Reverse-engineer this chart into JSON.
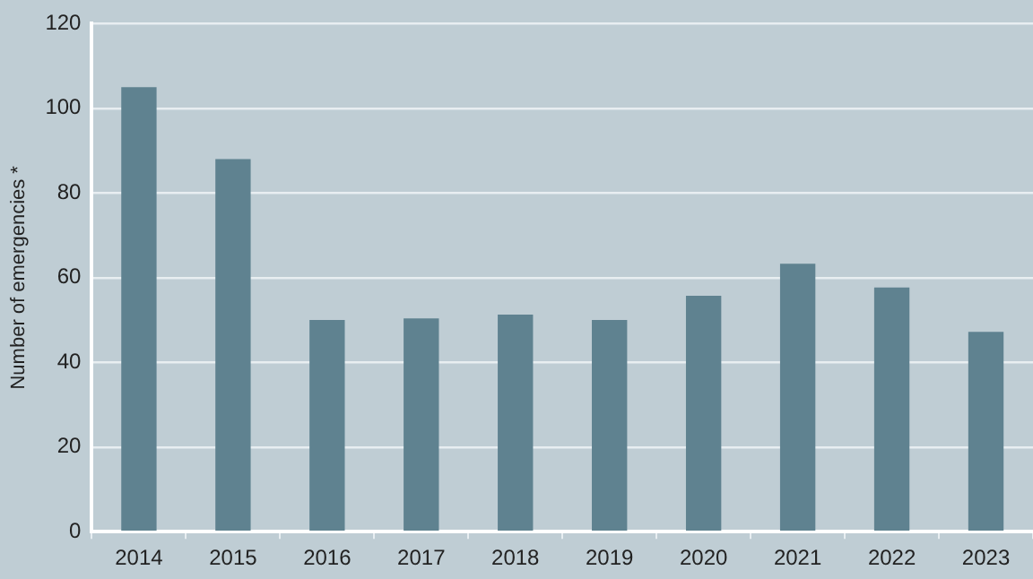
{
  "chart_data": {
    "type": "bar",
    "ylabel": "Number of emergencies *",
    "categories": [
      "2014",
      "2015",
      "2016",
      "2017",
      "2018",
      "2019",
      "2020",
      "2021",
      "2022",
      "2023"
    ],
    "values": [
      105,
      88,
      50,
      50.4,
      51.3,
      50,
      55.7,
      63.3,
      57.7,
      47.2
    ],
    "color": "#5f8290",
    "ylim": [
      0,
      120
    ],
    "yticks": [
      0,
      20,
      40,
      60,
      80,
      100,
      120
    ],
    "grid": "y",
    "legend": false
  }
}
